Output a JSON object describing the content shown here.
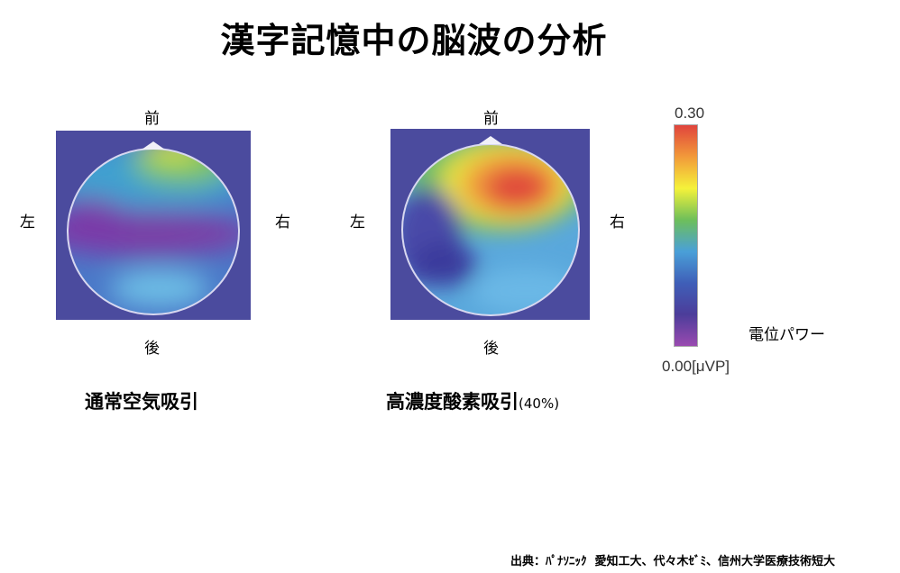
{
  "title": "漢字記憶中の脳波の分析",
  "maps": [
    {
      "front": "前",
      "back": "後",
      "left": "左",
      "right": "右",
      "caption": "通常空気吸引",
      "caption_note": ""
    },
    {
      "front": "前",
      "back": "後",
      "left": "左",
      "right": "右",
      "caption": "高濃度酸素吸引",
      "caption_note": "(40%)"
    }
  ],
  "colorbar": {
    "max_label": "0.30",
    "min_label": "0.00[μVP]",
    "title": "電位パワー",
    "min": 0.0,
    "max": 0.3,
    "unit": "μVP",
    "colors": [
      "#e0443c",
      "#f29a3a",
      "#f5f23a",
      "#6ebf5a",
      "#4aa0d8",
      "#3f5fb8",
      "#4c3d9a",
      "#9a4ab0"
    ]
  },
  "source": "出典：ﾊﾟﾅｿﾆｯｸ  愛知工大、代々木ｾﾞﾐ、信州大学医療技術短大"
}
